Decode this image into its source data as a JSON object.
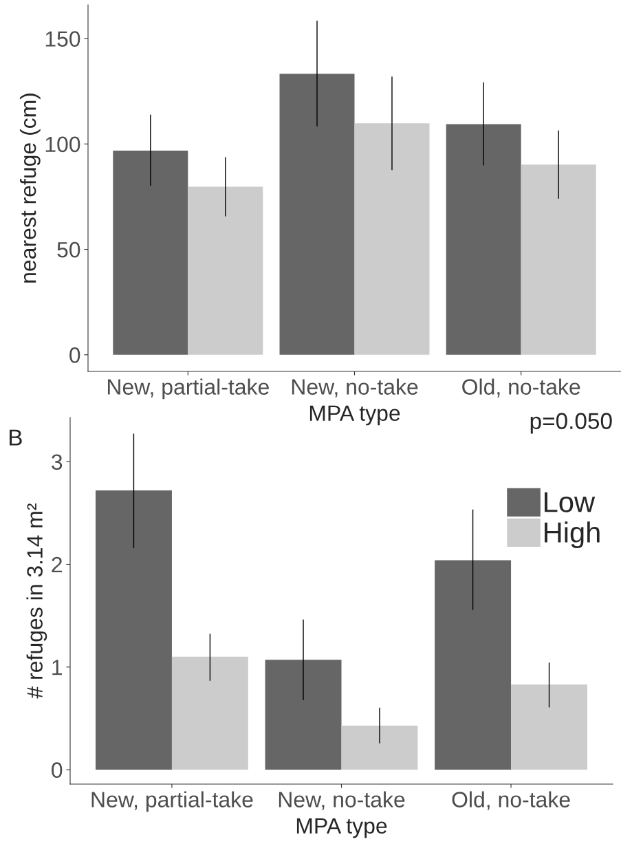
{
  "chart_data": [
    {
      "type": "bar",
      "categories": [
        "New, partial-take",
        "New, no-take",
        "Old, no-take"
      ],
      "xlabel": "MPA type",
      "ylabel": "nearest refuge (cm)",
      "ylim": [
        -7.9,
        166
      ],
      "yticks": [
        0,
        50,
        100,
        150
      ],
      "grid": false,
      "series": [
        {
          "color": "#666666",
          "values": [
            96.8,
            133.3,
            109.4
          ],
          "errors": [
            [
              80.3,
              113.7
            ],
            [
              108.5,
              158.3
            ],
            [
              90.0,
              129.1
            ]
          ]
        },
        {
          "color": "#cccccc",
          "values": [
            79.7,
            109.8,
            90.2
          ],
          "errors": [
            [
              65.8,
              93.6
            ],
            [
              87.8,
              131.8
            ],
            [
              74.2,
              106.2
            ]
          ]
        }
      ]
    },
    {
      "type": "bar",
      "categories": [
        "New, partial-take",
        "New, no-take",
        "Old, no-take"
      ],
      "xlabel": "MPA type",
      "ylabel": "# refuges in 3.14 m²",
      "ylim": [
        -0.14,
        3.43
      ],
      "yticks": [
        0,
        1,
        2,
        3
      ],
      "grid": false,
      "legend": "top right",
      "annotations": [
        "B",
        "p=0.050"
      ],
      "series": [
        {
          "name": "Low",
          "color": "#666666",
          "values": [
            2.72,
            1.07,
            2.04
          ],
          "errors": [
            [
              2.16,
              3.27
            ],
            [
              0.68,
              1.46
            ],
            [
              1.56,
              2.53
            ]
          ]
        },
        {
          "name": "High",
          "color": "#cccccc",
          "values": [
            1.1,
            0.43,
            0.83
          ],
          "errors": [
            [
              0.87,
              1.32
            ],
            [
              0.26,
              0.6
            ],
            [
              0.61,
              1.04
            ]
          ]
        }
      ]
    }
  ]
}
